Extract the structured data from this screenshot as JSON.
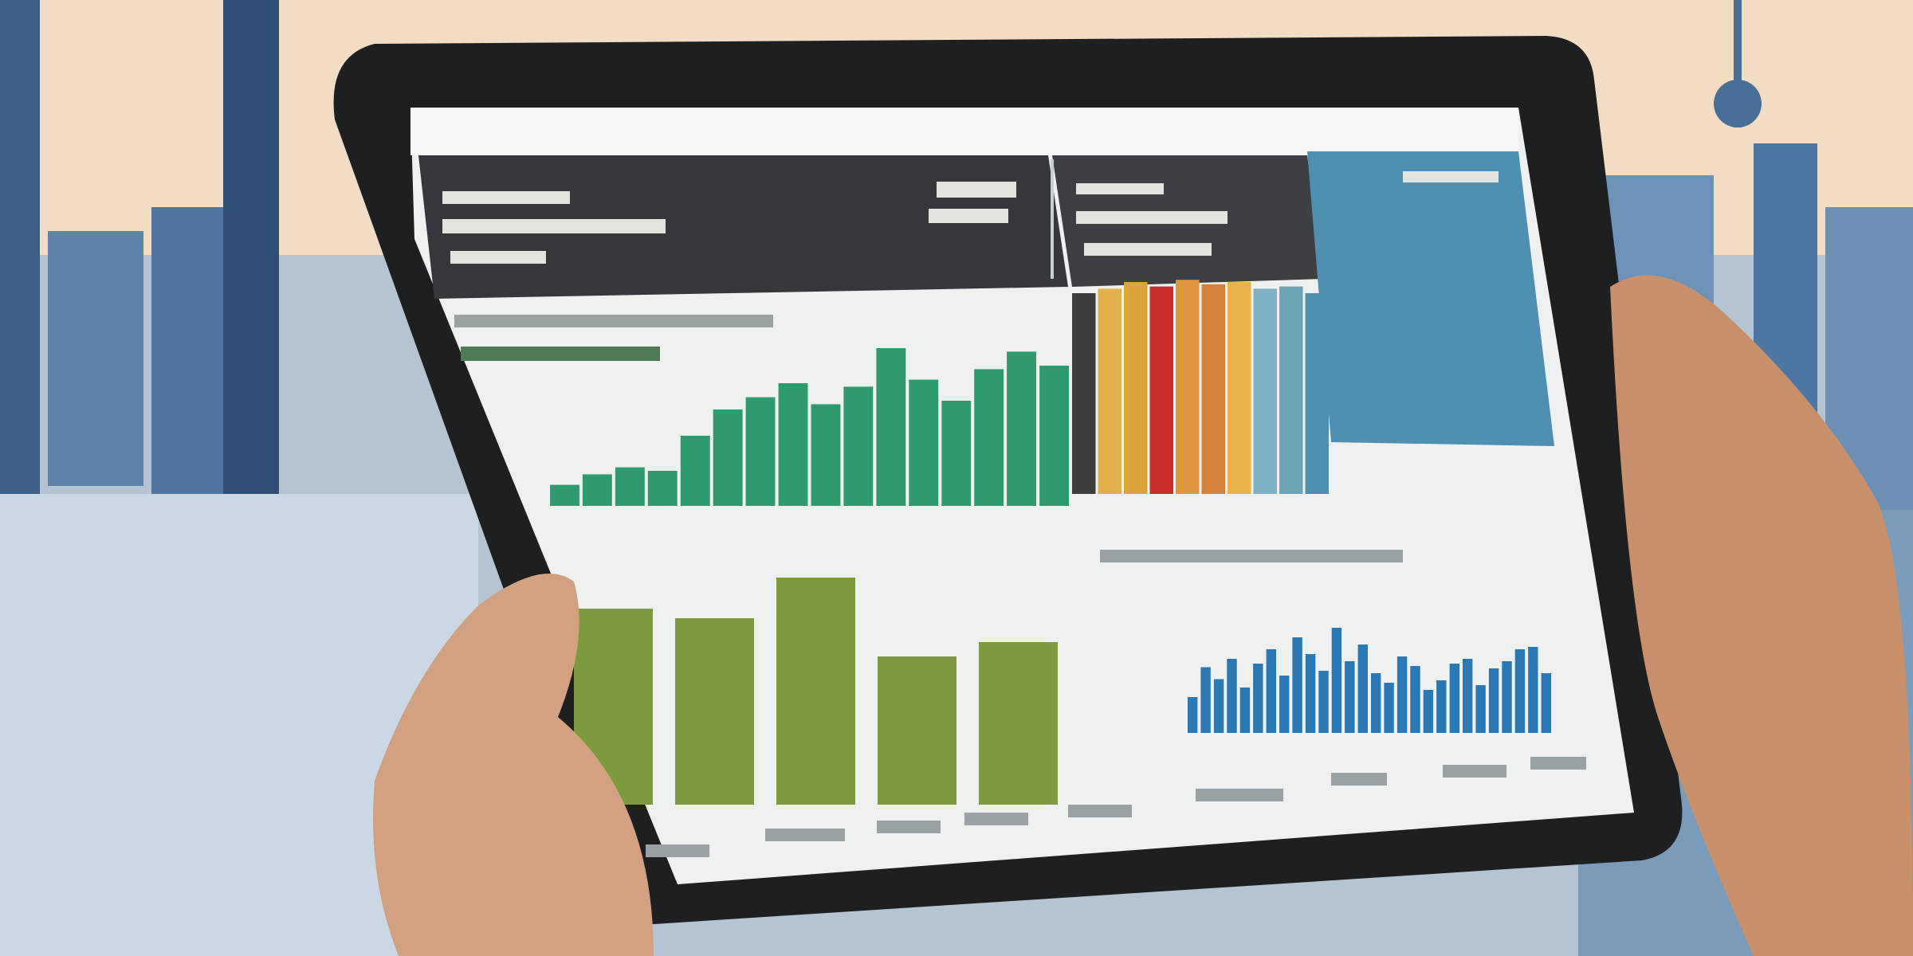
{
  "scene": {
    "colors": {
      "sky": "#f2dcc4",
      "city_blue": "#5d83a8",
      "water": "#c9d8e4",
      "tablet_frame": "#1e1f21",
      "screen_bg": "#eef1ef",
      "header_dark": "#35373a",
      "skin": "#d2a181"
    }
  },
  "chart_data": [
    {
      "type": "bar",
      "title": "",
      "xlabel": "",
      "ylabel": "",
      "ylim": [
        0,
        100
      ],
      "grid": false,
      "legend": "none",
      "series": [
        {
          "color": "#2f9a6d",
          "values": [
            12,
            18,
            22,
            20,
            40,
            55,
            62,
            70,
            58,
            68,
            90,
            72,
            60,
            78,
            88,
            80
          ]
        }
      ]
    },
    {
      "type": "bar",
      "title": "",
      "xlabel": "",
      "ylabel": "",
      "ylim": [
        0,
        100
      ],
      "grid": false,
      "legend": "none",
      "series": [
        {
          "values": [
            90,
            92,
            95,
            93,
            96,
            94,
            95,
            92,
            93,
            90
          ],
          "colors": [
            "#3a3c3e",
            "#e2b04a",
            "#dca43d",
            "#c92f2a",
            "#e0963a",
            "#d7823b",
            "#e9b24d",
            "#7fb2c3",
            "#6aa4b5",
            "#4f8fb1"
          ]
        }
      ]
    },
    {
      "type": "bar",
      "title": "",
      "xlabel": "",
      "ylabel": "",
      "ylim": [
        0,
        100
      ],
      "grid": false,
      "legend": "none",
      "series": [
        {
          "color": "#7c9a3e",
          "values": [
            82,
            78,
            95,
            62,
            68
          ]
        }
      ]
    },
    {
      "type": "bar",
      "title": "",
      "xlabel": "",
      "ylabel": "",
      "ylim": [
        0,
        100
      ],
      "grid": false,
      "legend": "none",
      "series": [
        {
          "color": "#2a78b4",
          "values": [
            30,
            55,
            45,
            62,
            38,
            58,
            70,
            48,
            80,
            66,
            52,
            88,
            60,
            74,
            50,
            42,
            64,
            56,
            36,
            44,
            58,
            62,
            40,
            54,
            60,
            70,
            72,
            50
          ]
        }
      ]
    }
  ]
}
